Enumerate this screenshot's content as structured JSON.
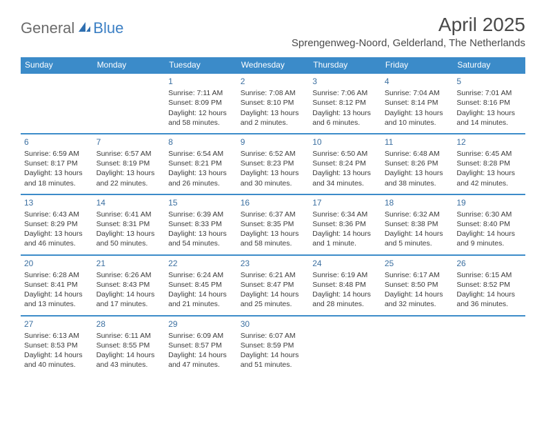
{
  "logo": {
    "part1": "General",
    "part2": "Blue"
  },
  "title": "April 2025",
  "location": "Sprengenweg-Noord, Gelderland, The Netherlands",
  "colors": {
    "header_bg": "#3b8bc9",
    "header_text": "#ffffff",
    "daynum": "#3b6fa0",
    "body_text": "#3a3a3a",
    "logo_gray": "#6b6b6b",
    "logo_blue": "#3b7fc4",
    "title_color": "#494949"
  },
  "day_names": [
    "Sunday",
    "Monday",
    "Tuesday",
    "Wednesday",
    "Thursday",
    "Friday",
    "Saturday"
  ],
  "weeks": [
    [
      null,
      null,
      {
        "n": "1",
        "sr": "7:11 AM",
        "ss": "8:09 PM",
        "dl": "12 hours and 58 minutes."
      },
      {
        "n": "2",
        "sr": "7:08 AM",
        "ss": "8:10 PM",
        "dl": "13 hours and 2 minutes."
      },
      {
        "n": "3",
        "sr": "7:06 AM",
        "ss": "8:12 PM",
        "dl": "13 hours and 6 minutes."
      },
      {
        "n": "4",
        "sr": "7:04 AM",
        "ss": "8:14 PM",
        "dl": "13 hours and 10 minutes."
      },
      {
        "n": "5",
        "sr": "7:01 AM",
        "ss": "8:16 PM",
        "dl": "13 hours and 14 minutes."
      }
    ],
    [
      {
        "n": "6",
        "sr": "6:59 AM",
        "ss": "8:17 PM",
        "dl": "13 hours and 18 minutes."
      },
      {
        "n": "7",
        "sr": "6:57 AM",
        "ss": "8:19 PM",
        "dl": "13 hours and 22 minutes."
      },
      {
        "n": "8",
        "sr": "6:54 AM",
        "ss": "8:21 PM",
        "dl": "13 hours and 26 minutes."
      },
      {
        "n": "9",
        "sr": "6:52 AM",
        "ss": "8:23 PM",
        "dl": "13 hours and 30 minutes."
      },
      {
        "n": "10",
        "sr": "6:50 AM",
        "ss": "8:24 PM",
        "dl": "13 hours and 34 minutes."
      },
      {
        "n": "11",
        "sr": "6:48 AM",
        "ss": "8:26 PM",
        "dl": "13 hours and 38 minutes."
      },
      {
        "n": "12",
        "sr": "6:45 AM",
        "ss": "8:28 PM",
        "dl": "13 hours and 42 minutes."
      }
    ],
    [
      {
        "n": "13",
        "sr": "6:43 AM",
        "ss": "8:29 PM",
        "dl": "13 hours and 46 minutes."
      },
      {
        "n": "14",
        "sr": "6:41 AM",
        "ss": "8:31 PM",
        "dl": "13 hours and 50 minutes."
      },
      {
        "n": "15",
        "sr": "6:39 AM",
        "ss": "8:33 PM",
        "dl": "13 hours and 54 minutes."
      },
      {
        "n": "16",
        "sr": "6:37 AM",
        "ss": "8:35 PM",
        "dl": "13 hours and 58 minutes."
      },
      {
        "n": "17",
        "sr": "6:34 AM",
        "ss": "8:36 PM",
        "dl": "14 hours and 1 minute."
      },
      {
        "n": "18",
        "sr": "6:32 AM",
        "ss": "8:38 PM",
        "dl": "14 hours and 5 minutes."
      },
      {
        "n": "19",
        "sr": "6:30 AM",
        "ss": "8:40 PM",
        "dl": "14 hours and 9 minutes."
      }
    ],
    [
      {
        "n": "20",
        "sr": "6:28 AM",
        "ss": "8:41 PM",
        "dl": "14 hours and 13 minutes."
      },
      {
        "n": "21",
        "sr": "6:26 AM",
        "ss": "8:43 PM",
        "dl": "14 hours and 17 minutes."
      },
      {
        "n": "22",
        "sr": "6:24 AM",
        "ss": "8:45 PM",
        "dl": "14 hours and 21 minutes."
      },
      {
        "n": "23",
        "sr": "6:21 AM",
        "ss": "8:47 PM",
        "dl": "14 hours and 25 minutes."
      },
      {
        "n": "24",
        "sr": "6:19 AM",
        "ss": "8:48 PM",
        "dl": "14 hours and 28 minutes."
      },
      {
        "n": "25",
        "sr": "6:17 AM",
        "ss": "8:50 PM",
        "dl": "14 hours and 32 minutes."
      },
      {
        "n": "26",
        "sr": "6:15 AM",
        "ss": "8:52 PM",
        "dl": "14 hours and 36 minutes."
      }
    ],
    [
      {
        "n": "27",
        "sr": "6:13 AM",
        "ss": "8:53 PM",
        "dl": "14 hours and 40 minutes."
      },
      {
        "n": "28",
        "sr": "6:11 AM",
        "ss": "8:55 PM",
        "dl": "14 hours and 43 minutes."
      },
      {
        "n": "29",
        "sr": "6:09 AM",
        "ss": "8:57 PM",
        "dl": "14 hours and 47 minutes."
      },
      {
        "n": "30",
        "sr": "6:07 AM",
        "ss": "8:59 PM",
        "dl": "14 hours and 51 minutes."
      },
      null,
      null,
      null
    ]
  ],
  "labels": {
    "sunrise": "Sunrise:",
    "sunset": "Sunset:",
    "daylight": "Daylight:"
  }
}
